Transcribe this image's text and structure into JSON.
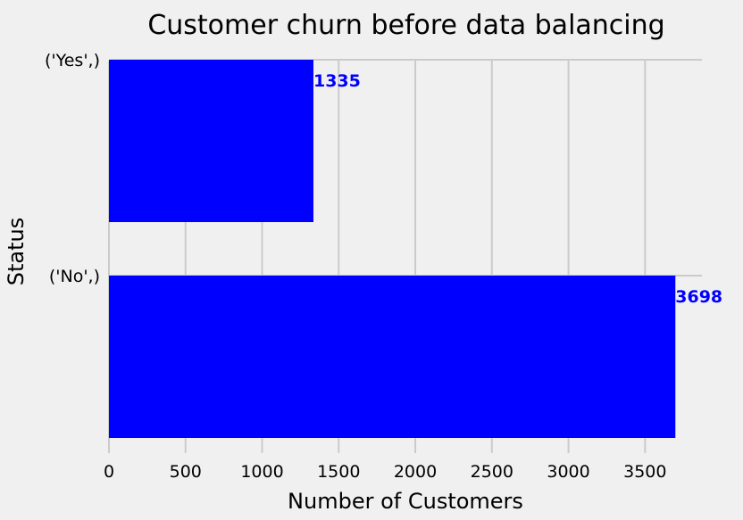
{
  "chart_data": {
    "type": "bar",
    "orientation": "horizontal",
    "title": "Customer churn before data balancing",
    "xlabel": "Number of Customers",
    "ylabel": "Status",
    "categories": [
      "('No',)",
      "('Yes',)"
    ],
    "values": [
      3698,
      1335
    ],
    "data_labels": [
      "3698",
      "1335"
    ],
    "xlim": [
      0,
      3883
    ],
    "xticks": [
      0,
      500,
      1000,
      1500,
      2000,
      2500,
      3000,
      3500
    ],
    "xtick_labels": [
      "0",
      "500",
      "1000",
      "1500",
      "2000",
      "2500",
      "3000",
      "3500"
    ],
    "grid": true,
    "bar_color": "#0000ff",
    "label_color": "#0000ff",
    "background_color": "#f0f0f0",
    "grid_color": "#cbcbcb"
  }
}
